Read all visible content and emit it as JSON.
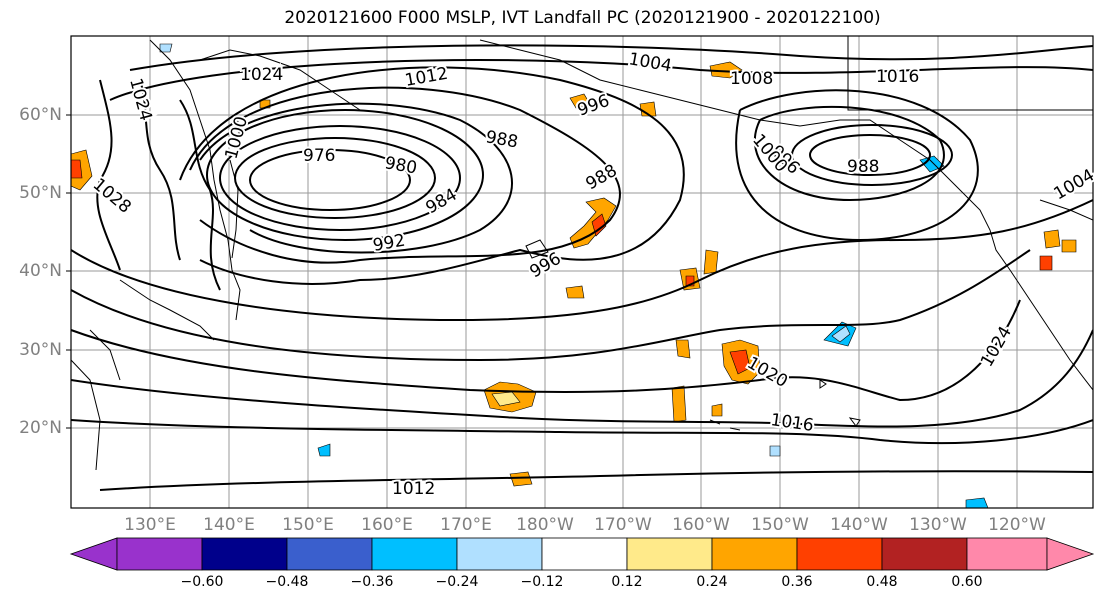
{
  "title": "2020121600 F000 MSLP, IVT Landfall PC (2020121900 - 2020122100)",
  "latitude_labels": [
    "60°N",
    "50°N",
    "40°N",
    "30°N",
    "20°N"
  ],
  "longitude_labels": [
    "130°E",
    "140°E",
    "150°E",
    "160°E",
    "170°E",
    "180°W",
    "170°W",
    "160°W",
    "150°W",
    "140°W",
    "130°W",
    "120°W"
  ],
  "isobar_labels": [
    "976",
    "980",
    "984",
    "988",
    "988",
    "988",
    "992",
    "996",
    "996",
    "996",
    "1000",
    "1000",
    "1004",
    "1004",
    "1008",
    "1012",
    "1012",
    "1016",
    "1016",
    "1020",
    "1024",
    "1024",
    "1024",
    "1028"
  ],
  "colorbar": {
    "ticks": [
      "−0.60",
      "−0.48",
      "−0.36",
      "−0.24",
      "−0.12",
      "0.12",
      "0.24",
      "0.36",
      "0.48",
      "0.60"
    ],
    "colors": [
      "#9932cc",
      "#00008b",
      "#3a5fcd",
      "#00bfff",
      "#b0e0ff",
      "#ffffff",
      "#ffea8a",
      "#ffa500",
      "#ff4000",
      "#b22222",
      "#ff88aa"
    ]
  }
}
